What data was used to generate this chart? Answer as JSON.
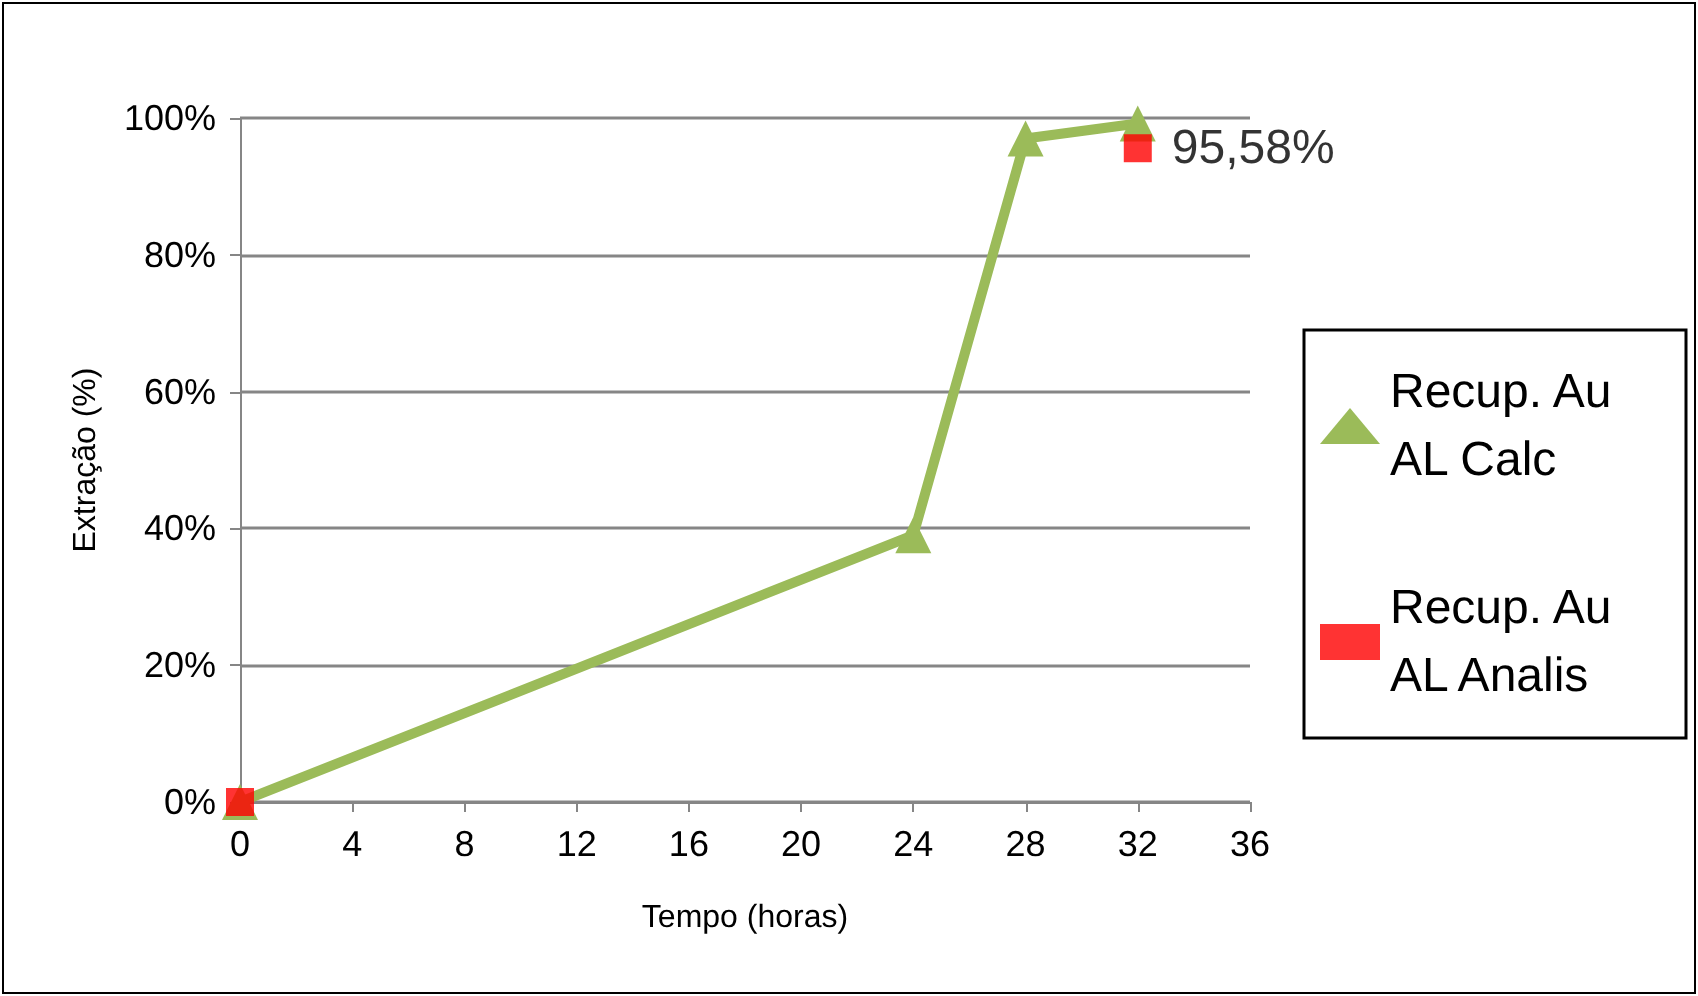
{
  "chart_data": {
    "type": "line",
    "xlabel": "Tempo (horas)",
    "ylabel": "Extração (%)",
    "series": [
      {
        "name": "Recup. Au AL Calc",
        "color": "#9bbb59",
        "marker": "triangle",
        "x": [
          0,
          24,
          28,
          32
        ],
        "values": [
          0,
          39,
          97,
          99.2
        ]
      },
      {
        "name": "Recup. Au AL Analis",
        "type": "scatter",
        "color": "#ff0000",
        "marker": "square",
        "x": [
          0,
          32
        ],
        "values": [
          0,
          95.58
        ],
        "value_labels": [
          null,
          "95,58%"
        ]
      }
    ],
    "xlim": [
      0,
      36
    ],
    "xticks": [
      0,
      4,
      8,
      12,
      16,
      20,
      24,
      28,
      32,
      36
    ],
    "ylim": [
      0,
      100
    ],
    "yticks": [
      {
        "value": 0,
        "label": "0%"
      },
      {
        "value": 20,
        "label": "20%"
      },
      {
        "value": 40,
        "label": "40%"
      },
      {
        "value": 60,
        "label": "60%"
      },
      {
        "value": 80,
        "label": "80%"
      },
      {
        "value": 100,
        "label": "100%"
      }
    ],
    "grid": "y",
    "legend": "right"
  }
}
